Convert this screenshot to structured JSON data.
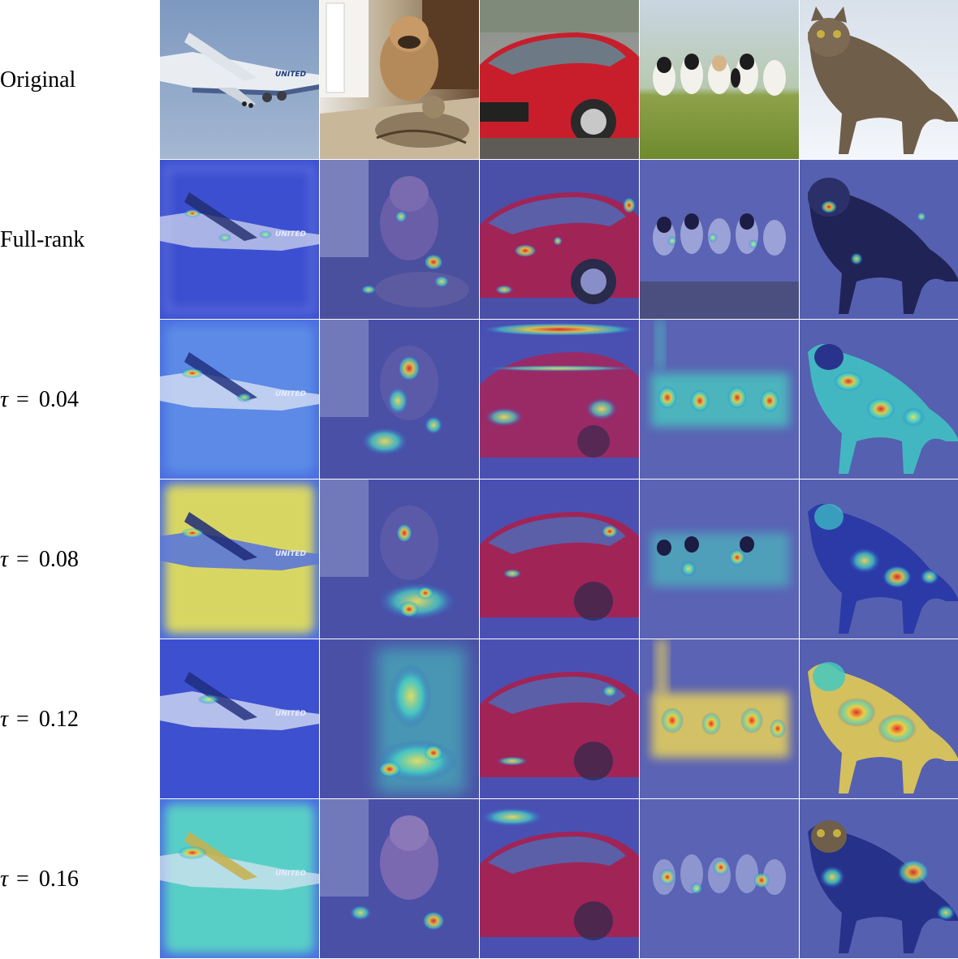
{
  "rows": [
    {
      "label": "Original"
    },
    {
      "label": "Full-rank"
    },
    {
      "tau_symbol": "τ",
      "equals": "=",
      "value": "0.04"
    },
    {
      "tau_symbol": "τ",
      "equals": "=",
      "value": "0.08"
    },
    {
      "tau_symbol": "τ",
      "equals": "=",
      "value": "0.12"
    },
    {
      "tau_symbol": "τ",
      "equals": "=",
      "value": "0.16"
    }
  ],
  "columns": [
    {
      "subject": "airplane",
      "tail_text": "UNITED"
    },
    {
      "subject": "dog-and-cat"
    },
    {
      "subject": "red-car"
    },
    {
      "subject": "dogs-group"
    },
    {
      "subject": "cat"
    }
  ],
  "colors": {
    "sky": "#8fa7c6",
    "heat_low": "#3347c8",
    "heat_mid": "#35d2c8",
    "heat_high_yellow": "#e8e05a",
    "heat_high_red": "#d4332a",
    "car_red": "#c81e2c",
    "grass": "#8a9e3a",
    "snow": "#e9eef5"
  }
}
